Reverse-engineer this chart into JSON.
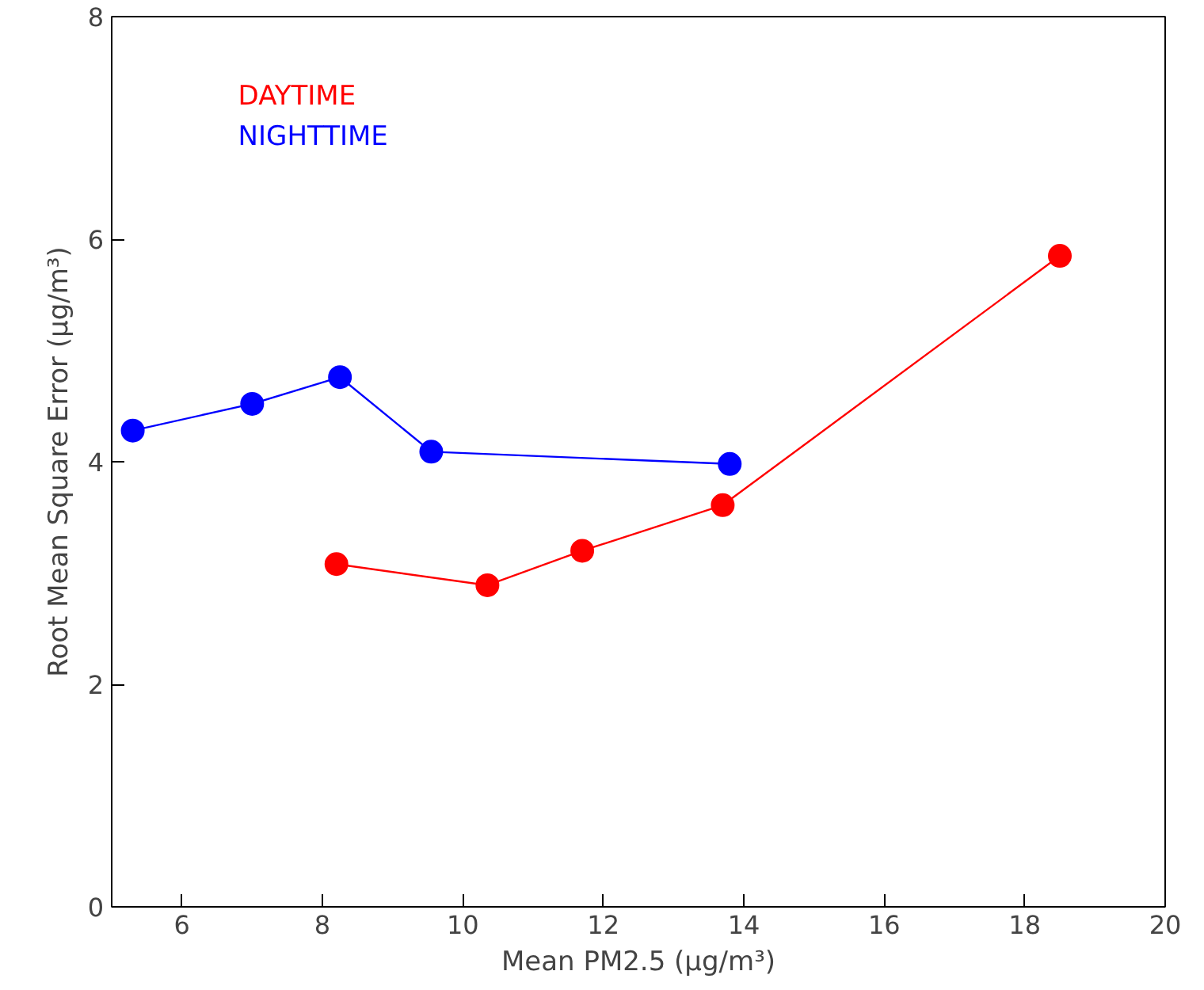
{
  "chart_data": {
    "type": "line",
    "xlabel": "Mean PM2.5 (μg/m³)",
    "ylabel": "Root Mean Square Error (μg/m³)",
    "xlim": [
      5,
      20
    ],
    "xticks": [
      6,
      8,
      10,
      12,
      14,
      16,
      18,
      20
    ],
    "ylim": [
      0,
      8
    ],
    "yticks": [
      0,
      2,
      4,
      6,
      8
    ],
    "series": [
      {
        "name": "DAYTIME",
        "color": "#ff0000",
        "x": [
          8.2,
          10.35,
          11.7,
          13.7,
          18.5
        ],
        "values": [
          3.08,
          2.89,
          3.2,
          3.61,
          5.85
        ]
      },
      {
        "name": "NIGHTTIME",
        "color": "#0000ff",
        "x": [
          5.3,
          7.0,
          8.25,
          9.55,
          13.8
        ],
        "values": [
          4.28,
          4.52,
          4.76,
          4.09,
          3.98
        ]
      }
    ],
    "marker": "circle",
    "line_style": "solid",
    "grid": false,
    "legend": "top left"
  }
}
